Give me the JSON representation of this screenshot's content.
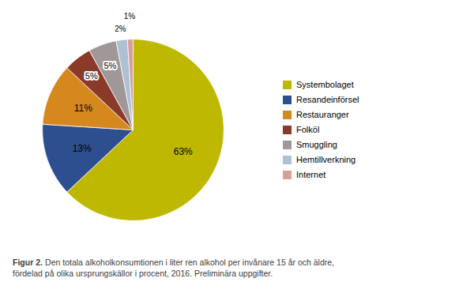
{
  "chart_data": {
    "type": "pie",
    "categories": [
      "Systembolaget",
      "Resandeinförsel",
      "Restauranger",
      "Folköl",
      "Smuggling",
      "Hemtillverkning",
      "Internet"
    ],
    "values": [
      63,
      13,
      11,
      5,
      5,
      2,
      1
    ],
    "value_labels": [
      "63%",
      "13%",
      "11%",
      "5%",
      "5%",
      "2%",
      "1%"
    ],
    "colors": [
      "#bfb800",
      "#2e4f8f",
      "#d4881e",
      "#8b3a2a",
      "#a09898",
      "#adc0d4",
      "#d4a098"
    ],
    "data_labels": true,
    "legend": "right",
    "caption_title": "Figur 2.",
    "caption": "Den totala alkoholkonsumtionen i liter ren alkohol per invånare 15 år och äldre,\nfördelad på olika ursprungskällor i procent, 2016. Preliminära uppgifter."
  }
}
